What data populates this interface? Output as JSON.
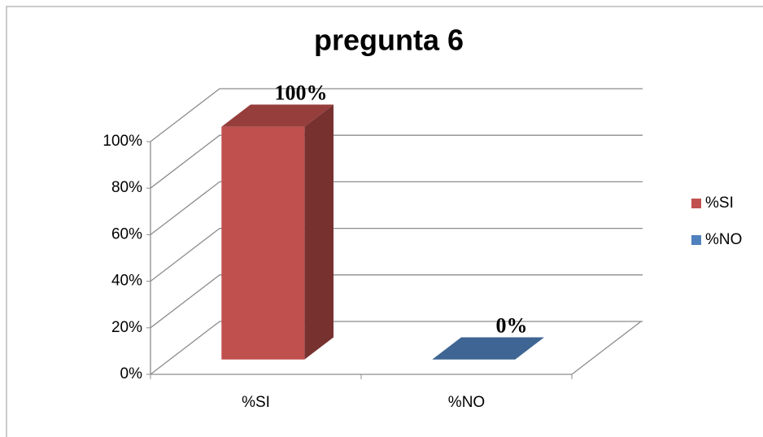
{
  "chart_data": {
    "type": "bar3d",
    "title": "pregunta 6",
    "categories": [
      "%SI",
      "%NO"
    ],
    "series": [
      {
        "name": "%SI",
        "color": "#c0504d",
        "values": [
          100,
          null
        ],
        "value_labels": [
          "100%",
          null
        ]
      },
      {
        "name": "%NO",
        "color": "#4f81bd",
        "values": [
          null,
          0
        ],
        "value_labels": [
          null,
          "0%"
        ]
      }
    ],
    "ylim": [
      0,
      100
    ],
    "yticks": [
      {
        "value": 0,
        "label": "0%"
      },
      {
        "value": 20,
        "label": "20%"
      },
      {
        "value": 40,
        "label": "40%"
      },
      {
        "value": 60,
        "label": "60%"
      },
      {
        "value": 80,
        "label": "80%"
      },
      {
        "value": 100,
        "label": "100%"
      }
    ],
    "grid": true,
    "legend": "right"
  }
}
